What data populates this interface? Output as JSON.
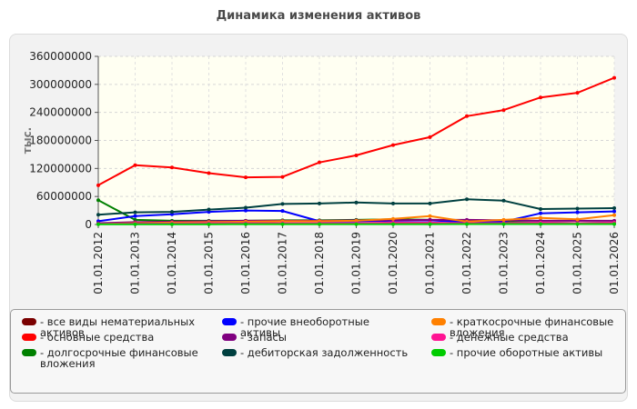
{
  "chart_data": {
    "type": "line",
    "title": "Динамика изменения активов",
    "ylabel": "тыс.",
    "xlabel": "",
    "ylim": [
      0,
      360000000
    ],
    "yticks": [
      0,
      60000000,
      120000000,
      180000000,
      240000000,
      300000000,
      360000000
    ],
    "ytick_labels": [
      "0",
      "60000000",
      "120000000",
      "180000000",
      "240000000",
      "300000000",
      "360000000"
    ],
    "grid": true,
    "legend_position": "bottom",
    "categories": [
      "01.01.2012",
      "01.01.2013",
      "01.01.2014",
      "01.01.2015",
      "01.01.2016",
      "01.01.2017",
      "01.01.2018",
      "01.01.2019",
      "01.01.2020",
      "01.01.2021",
      "01.01.2022",
      "01.01.2023",
      "01.01.2024",
      "01.01.2025",
      "01.01.2026"
    ],
    "series": [
      {
        "name": "все виды нематериальных активов",
        "color": "#7a0000",
        "values": [
          1000000,
          1500000,
          1800000,
          2000000,
          2100000,
          2200000,
          2200000,
          2300000,
          2300000,
          2400000,
          2400000,
          2500000,
          2500000,
          2600000,
          2700000
        ]
      },
      {
        "name": "основные средства",
        "color": "#ff0000",
        "values": [
          84000000,
          127000000,
          122000000,
          110000000,
          101000000,
          102000000,
          133000000,
          148000000,
          170000000,
          187000000,
          232000000,
          245000000,
          272000000,
          282000000,
          314000000
        ]
      },
      {
        "name": "долгосрочные финансовые вложения",
        "color": "#008000",
        "values": [
          52000000,
          10000000,
          8000000,
          8000000,
          8000000,
          9000000,
          9000000,
          10000000,
          11000000,
          10000000,
          6000000,
          5000000,
          4000000,
          3000000,
          4000000
        ]
      },
      {
        "name": "прочие внеоборотные активы",
        "color": "#0000ff",
        "values": [
          7000000,
          18000000,
          22000000,
          27000000,
          30000000,
          29000000,
          7000000,
          7000000,
          8000000,
          9000000,
          5000000,
          6000000,
          24000000,
          26000000,
          28000000
        ]
      },
      {
        "name": "запасы",
        "color": "#800080",
        "values": [
          3000000,
          5000000,
          6000000,
          7000000,
          8000000,
          8000000,
          8000000,
          9000000,
          9000000,
          10000000,
          10000000,
          9000000,
          8000000,
          8000000,
          8000000
        ]
      },
      {
        "name": "дебиторская задолженность",
        "color": "#004040",
        "values": [
          21000000,
          26000000,
          27000000,
          32000000,
          36000000,
          44000000,
          45000000,
          47000000,
          45000000,
          45000000,
          54000000,
          51000000,
          33000000,
          34000000,
          35000000
        ]
      },
      {
        "name": "краткосрочные финансовые вложения",
        "color": "#ff8000",
        "values": [
          1000000,
          3000000,
          4000000,
          5000000,
          6000000,
          7000000,
          7000000,
          8000000,
          12000000,
          18000000,
          6000000,
          10000000,
          14000000,
          11000000,
          20000000
        ]
      },
      {
        "name": "денежные средства",
        "color": "#ff1493",
        "values": [
          1000000,
          2000000,
          2000000,
          3000000,
          3000000,
          3000000,
          3000000,
          3000000,
          4000000,
          4000000,
          3000000,
          3000000,
          4000000,
          3000000,
          4000000
        ]
      },
      {
        "name": "прочие оборотные активы",
        "color": "#00cc00",
        "values": [
          500000,
          500000,
          600000,
          600000,
          700000,
          700000,
          700000,
          800000,
          800000,
          800000,
          900000,
          900000,
          900000,
          900000,
          1000000
        ]
      }
    ]
  },
  "legend_layout": [
    "все виды нематериальных активов",
    "прочие внеоборотные активы",
    "краткосрочные финансовые вложения",
    "основные средства",
    "запасы",
    "денежные средства",
    "долгосрочные финансовые вложения",
    "дебиторская задолженность",
    "прочие оборотные активы"
  ],
  "legend": {
    "items": [
      {
        "label": "все виды нематериальных активов",
        "color": "#7a0000"
      },
      {
        "label": "прочие внеоборотные активы",
        "color": "#0000ff"
      },
      {
        "label": "краткосрочные финансовые вложения",
        "color": "#ff8000"
      },
      {
        "label": "основные средства",
        "color": "#ff0000"
      },
      {
        "label": "запасы",
        "color": "#800080"
      },
      {
        "label": "денежные средства",
        "color": "#ff1493"
      },
      {
        "label": "долгосрочные финансовые вложения",
        "color": "#008000"
      },
      {
        "label": "дебиторская задолженность",
        "color": "#004040"
      },
      {
        "label": "прочие оборотные активы",
        "color": "#00cc00"
      }
    ]
  }
}
